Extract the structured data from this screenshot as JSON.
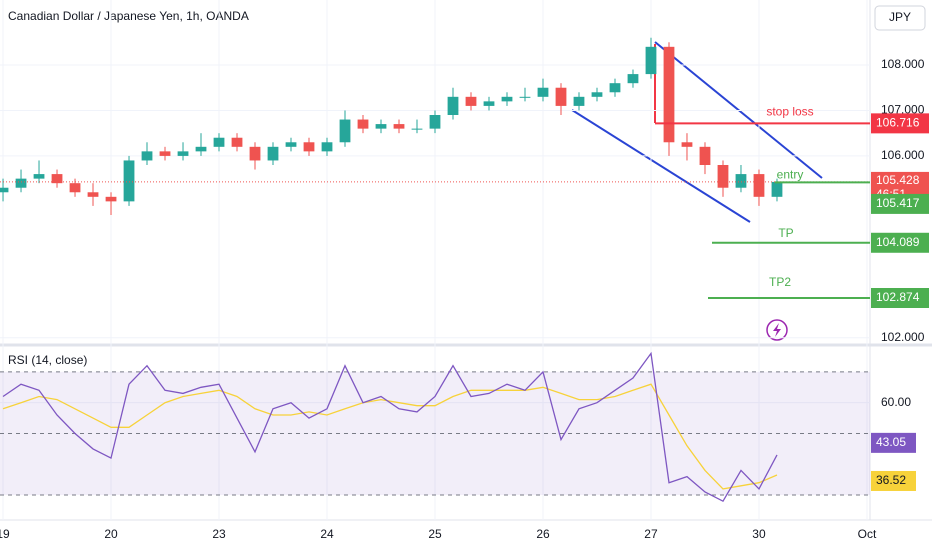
{
  "chart_data": [
    {
      "type": "candlestick",
      "title": "Canadian Dollar / Japanese Yen, 1h, OANDA",
      "currency": "JPY",
      "x": [
        0,
        0.1667,
        0.3333,
        0.5,
        0.6667,
        0.8333,
        1,
        1.1667,
        1.3333,
        1.5,
        1.6667,
        1.8333,
        2,
        2.1667,
        2.3333,
        2.5,
        2.6667,
        2.8333,
        3,
        3.1667,
        3.3333,
        3.5,
        3.6667,
        3.8333,
        4,
        4.1667,
        4.3333,
        4.5,
        4.6667,
        4.8333,
        5,
        5.1667,
        5.3333,
        5.5,
        5.6667,
        5.8333,
        6,
        6.1667,
        6.3333,
        6.5,
        6.6667,
        6.8333,
        7,
        7.1667
      ],
      "open": [
        105.2,
        105.3,
        105.5,
        105.6,
        105.4,
        105.2,
        105.1,
        105.0,
        105.9,
        106.1,
        106.0,
        106.1,
        106.2,
        106.4,
        106.2,
        105.9,
        106.2,
        106.3,
        106.1,
        106.3,
        106.8,
        106.6,
        106.7,
        106.6,
        106.6,
        106.9,
        107.3,
        107.1,
        107.2,
        107.3,
        107.3,
        107.5,
        107.1,
        107.3,
        107.4,
        107.6,
        107.8,
        108.4,
        106.3,
        106.2,
        105.8,
        105.3,
        105.6,
        105.1
      ],
      "high": [
        105.5,
        105.7,
        105.9,
        105.7,
        105.5,
        105.4,
        105.2,
        106.0,
        106.3,
        106.2,
        106.3,
        106.5,
        106.5,
        106.5,
        106.3,
        106.3,
        106.4,
        106.4,
        106.4,
        107.0,
        106.9,
        106.8,
        106.8,
        106.8,
        107.0,
        107.5,
        107.4,
        107.3,
        107.4,
        107.5,
        107.7,
        107.6,
        107.4,
        107.5,
        107.7,
        107.9,
        108.6,
        108.5,
        106.5,
        106.3,
        105.9,
        105.8,
        105.7,
        105.5
      ],
      "low": [
        105.0,
        105.2,
        105.4,
        105.3,
        105.1,
        104.9,
        104.7,
        104.9,
        105.8,
        105.9,
        105.9,
        106.0,
        106.1,
        106.1,
        105.7,
        105.8,
        106.1,
        106.0,
        106.0,
        106.2,
        106.5,
        106.5,
        106.5,
        106.5,
        106.5,
        106.8,
        107.0,
        107.0,
        107.1,
        107.2,
        107.2,
        106.9,
        107.0,
        107.2,
        107.3,
        107.5,
        107.7,
        106.0,
        105.9,
        105.6,
        105.1,
        105.2,
        104.9,
        105.0
      ],
      "close": [
        105.3,
        105.5,
        105.6,
        105.4,
        105.2,
        105.1,
        105.0,
        105.9,
        106.1,
        106.0,
        106.1,
        106.2,
        106.4,
        106.2,
        105.9,
        106.2,
        106.3,
        106.1,
        106.3,
        106.8,
        106.6,
        106.7,
        106.6,
        106.6,
        106.9,
        107.3,
        107.1,
        107.2,
        107.3,
        107.3,
        107.5,
        107.1,
        107.3,
        107.4,
        107.6,
        107.8,
        108.4,
        106.3,
        106.2,
        105.8,
        105.3,
        105.6,
        105.1,
        105.428
      ],
      "up_color": "#26a69a",
      "down_color": "#ef5350",
      "last": 105.428,
      "countdown": "46:51",
      "xlim": [
        -0.028,
        8.028
      ],
      "xticks": [
        {
          "value": 0,
          "label": "19"
        },
        {
          "value": 1,
          "label": "20"
        },
        {
          "value": 2,
          "label": "23"
        },
        {
          "value": 3,
          "label": "24"
        },
        {
          "value": 4,
          "label": "25"
        },
        {
          "value": 5,
          "label": "26"
        },
        {
          "value": 6,
          "label": "27"
        },
        {
          "value": 7,
          "label": "30"
        },
        {
          "value": 8,
          "label": "Oct"
        }
      ],
      "ylim": [
        101.95,
        109.43
      ],
      "yticks": [
        {
          "value": 102,
          "label": "102.000"
        },
        {
          "value": 106,
          "label": "106.000"
        },
        {
          "value": 107,
          "label": "107.000"
        },
        {
          "value": 108,
          "label": "108.000"
        }
      ],
      "levels": [
        {
          "name": "stop loss",
          "value": 106.716,
          "color": "#f23645"
        },
        {
          "name": "entry",
          "value": 105.417,
          "color": "#4caf50"
        },
        {
          "name": "TP",
          "value": 104.089,
          "color": "#4caf50"
        },
        {
          "name": "TP2",
          "value": 102.874,
          "color": "#4caf50"
        }
      ]
    },
    {
      "type": "line",
      "title": "RSI (14, close)",
      "x": [
        0,
        0.1667,
        0.3333,
        0.5,
        0.6667,
        0.8333,
        1,
        1.1667,
        1.3333,
        1.5,
        1.6667,
        1.8333,
        2,
        2.1667,
        2.3333,
        2.5,
        2.6667,
        2.8333,
        3,
        3.1667,
        3.3333,
        3.5,
        3.6667,
        3.8333,
        4,
        4.1667,
        4.3333,
        4.5,
        4.6667,
        4.8333,
        5,
        5.1667,
        5.3333,
        5.5,
        5.6667,
        5.8333,
        6,
        6.1667,
        6.3333,
        6.5,
        6.6667,
        6.8333,
        7,
        7.1667
      ],
      "series": [
        {
          "color": "#7e57c2",
          "values": [
            62,
            66,
            64,
            56,
            50,
            45,
            42,
            66,
            72,
            64,
            63,
            65,
            66,
            55,
            44,
            58,
            60,
            55,
            58,
            72,
            60,
            62,
            58,
            57,
            62,
            72,
            62,
            63,
            66,
            64,
            70,
            48,
            58,
            60,
            64,
            68,
            76,
            34,
            36,
            31,
            28,
            38,
            32,
            43.05
          ]
        },
        {
          "color": "#f7d23a",
          "values": [
            58,
            60,
            62,
            61,
            58,
            55,
            52,
            52,
            56,
            60,
            62,
            63,
            64,
            62,
            58,
            56,
            56,
            57,
            56,
            58,
            60,
            61,
            60,
            59,
            59,
            62,
            64,
            64,
            64,
            64,
            65,
            63,
            61,
            61,
            62,
            64,
            66,
            56,
            46,
            38,
            32,
            33,
            34,
            36.52
          ]
        }
      ],
      "xlim": [
        -0.028,
        8.028
      ],
      "ylim": [
        21.9,
        77.1
      ],
      "yticks": [
        {
          "value": 60,
          "label": "60.00"
        }
      ],
      "bands": [
        30,
        50,
        70
      ]
    }
  ]
}
